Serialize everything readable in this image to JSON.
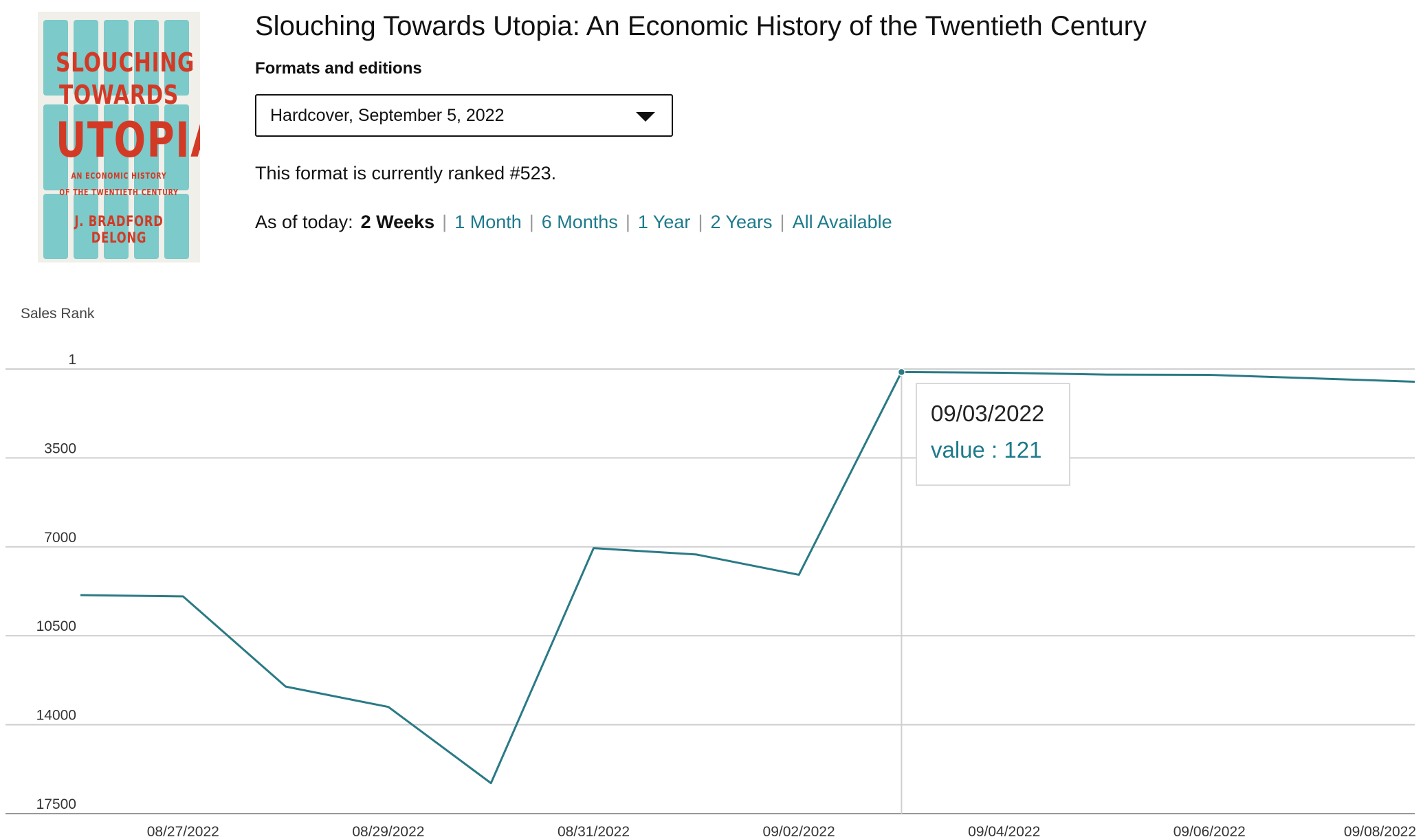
{
  "book": {
    "title": "Slouching Towards Utopia: An Economic History of the Twentieth Century",
    "cover": {
      "line1": "SLOUCHING",
      "line2": "TOWARDS",
      "line3": "UTOPIA",
      "subtitle1": "AN ECONOMIC HISTORY",
      "subtitle2": "OF THE TWENTIETH CENTURY",
      "author": "J. BRADFORD DELONG",
      "accent_color": "#d23a26",
      "fridge_color": "#7ccac9"
    }
  },
  "formats": {
    "label": "Formats and editions",
    "selected": "Hardcover, September 5, 2022",
    "caret_icon": "caret-down-icon"
  },
  "rank_text": "This format is currently ranked #523.",
  "ranges": {
    "prefix": "As of today:",
    "options": [
      "2 Weeks",
      "1 Month",
      "6 Months",
      "1 Year",
      "2 Years",
      "All Available"
    ],
    "active": "2 Weeks",
    "link_color": "#1d7a8c"
  },
  "tooltip": {
    "date": "09/03/2022",
    "value_text": "value : 121"
  },
  "chart_data": {
    "type": "line",
    "ylabel": "Sales Rank",
    "y_inverted": true,
    "ylim": [
      1,
      17500
    ],
    "yticks": [
      1,
      3500,
      7000,
      10500,
      14000,
      17500
    ],
    "ytick_labels": [
      "1",
      "3500",
      "7000",
      "10500",
      "14000",
      "17500"
    ],
    "xticks": [
      "2022-08-27",
      "2022-08-29",
      "2022-08-31",
      "2022-09-02",
      "2022-09-04",
      "2022-09-06",
      "2022-09-08"
    ],
    "xtick_labels": [
      "08/27/2022",
      "08/29/2022",
      "08/31/2022",
      "09/02/2022",
      "09/04/2022",
      "09/06/2022",
      "09/08/2022"
    ],
    "xlim": [
      "2022-08-26",
      "2022-09-08"
    ],
    "grid": true,
    "line_color": "#2a7a85",
    "highlight": {
      "x": "2022-09-03",
      "y": 121
    },
    "series": [
      {
        "x": [
          "2022-08-26",
          "2022-08-27",
          "2022-08-28",
          "2022-08-29",
          "2022-08-30",
          "2022-08-31",
          "2022-09-01",
          "2022-09-02",
          "2022-09-03",
          "2022-09-04",
          "2022-09-05",
          "2022-09-06",
          "2022-09-08"
        ],
        "values": [
          8900,
          8950,
          12500,
          13300,
          16300,
          7050,
          7300,
          8100,
          121,
          150,
          220,
          230,
          500
        ]
      }
    ]
  }
}
